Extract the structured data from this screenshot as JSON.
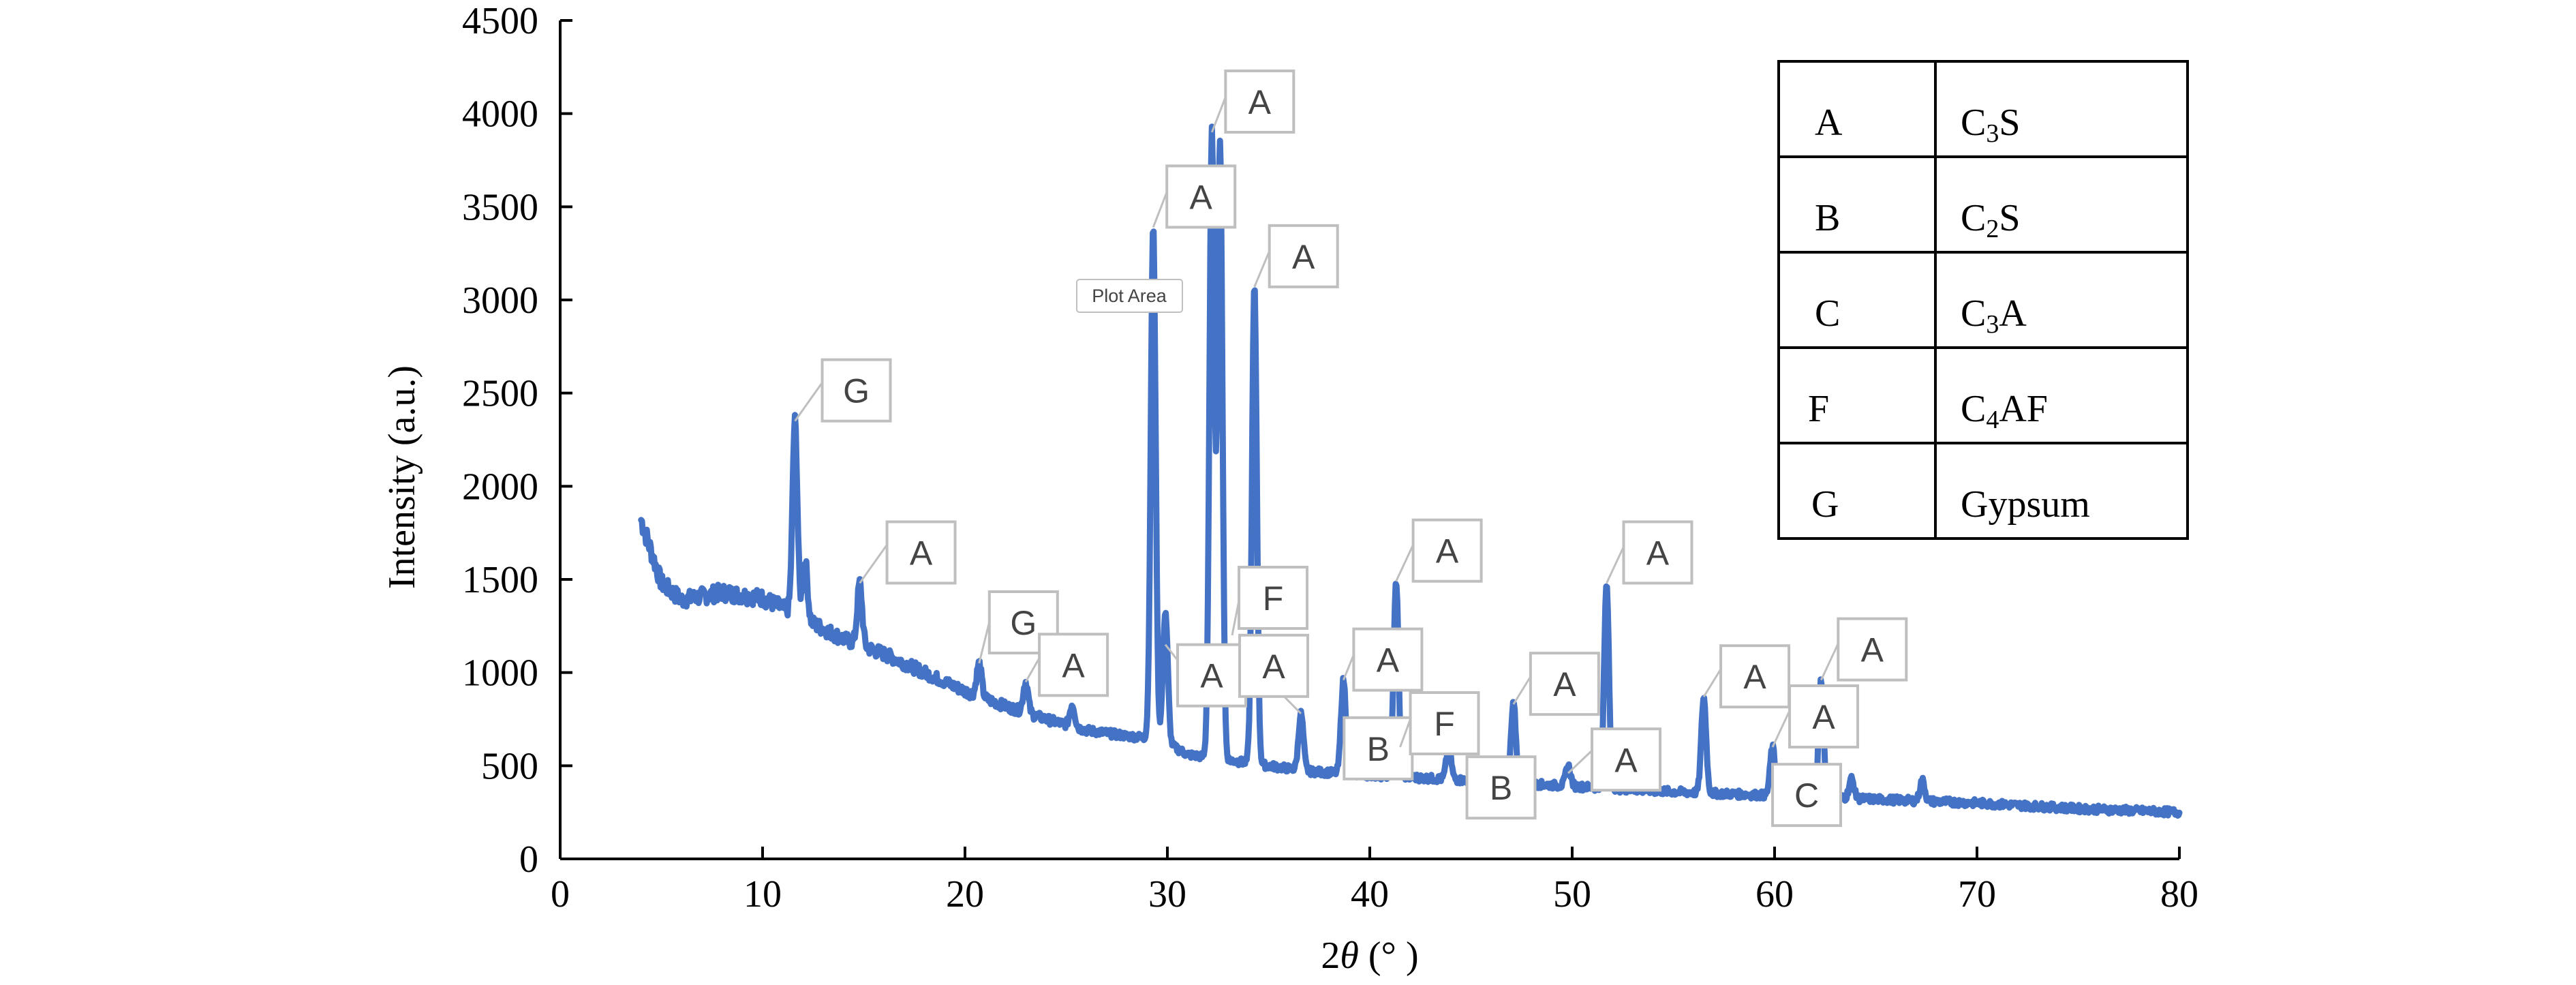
{
  "chart_data": {
    "type": "line",
    "xlabel_prefix": "2",
    "xlabel_theta": "θ",
    "xlabel_suffix": " (° )",
    "ylabel": "Intensity (a.u.)",
    "xlim": [
      0,
      80
    ],
    "ylim": [
      0,
      4500
    ],
    "xticks": [
      0,
      10,
      20,
      30,
      40,
      50,
      60,
      70,
      80
    ],
    "yticks": [
      0,
      500,
      1000,
      1500,
      2000,
      2500,
      3000,
      3500,
      4000,
      4500
    ],
    "grid": false,
    "series_color": "#4472C4",
    "background_curve": [
      [
        4,
        1820
      ],
      [
        5,
        1480
      ],
      [
        6,
        1390
      ],
      [
        8,
        1430
      ],
      [
        10,
        1400
      ],
      [
        12,
        1290
      ],
      [
        14,
        1180
      ],
      [
        16,
        1100
      ],
      [
        18,
        1000
      ],
      [
        20,
        900
      ],
      [
        22,
        820
      ],
      [
        24,
        750
      ],
      [
        26,
        690
      ],
      [
        28,
        660
      ],
      [
        29,
        650
      ],
      [
        30,
        620
      ],
      [
        31,
        560
      ],
      [
        33,
        530
      ],
      [
        35,
        500
      ],
      [
        37,
        470
      ],
      [
        40,
        450
      ],
      [
        45,
        420
      ],
      [
        50,
        390
      ],
      [
        55,
        360
      ],
      [
        60,
        340
      ],
      [
        65,
        320
      ],
      [
        70,
        300
      ],
      [
        75,
        270
      ],
      [
        80,
        250
      ]
    ],
    "peaks": [
      {
        "x": 11.6,
        "y": 2350
      },
      {
        "x": 12.1,
        "y": 1600
      },
      {
        "x": 14.8,
        "y": 1480
      },
      {
        "x": 20.7,
        "y": 1050
      },
      {
        "x": 23.0,
        "y": 950
      },
      {
        "x": 25.3,
        "y": 830
      },
      {
        "x": 29.3,
        "y": 3390
      },
      {
        "x": 29.9,
        "y": 1330
      },
      {
        "x": 32.2,
        "y": 3900
      },
      {
        "x": 32.6,
        "y": 3850
      },
      {
        "x": 34.3,
        "y": 3070
      },
      {
        "x": 36.6,
        "y": 780
      },
      {
        "x": 38.7,
        "y": 960
      },
      {
        "x": 41.3,
        "y": 1490
      },
      {
        "x": 43.9,
        "y": 600
      },
      {
        "x": 47.1,
        "y": 830
      },
      {
        "x": 49.8,
        "y": 500
      },
      {
        "x": 51.7,
        "y": 1480
      },
      {
        "x": 56.5,
        "y": 870
      },
      {
        "x": 59.9,
        "y": 600
      },
      {
        "x": 62.3,
        "y": 960
      },
      {
        "x": 63.8,
        "y": 430
      },
      {
        "x": 67.3,
        "y": 420
      }
    ],
    "peak_labels": [
      {
        "text": "G",
        "x": 11.6,
        "y": 2350
      },
      {
        "text": "A",
        "x": 14.8,
        "y": 1480
      },
      {
        "text": "G",
        "x": 20.7,
        "y": 1050
      },
      {
        "text": "A",
        "x": 23.0,
        "y": 950
      },
      {
        "text": "A",
        "x": 29.3,
        "y": 3390
      },
      {
        "text": "A",
        "x": 29.9,
        "y": 1150
      },
      {
        "text": "A",
        "x": 32.2,
        "y": 3900
      },
      {
        "text": "A",
        "x": 34.3,
        "y": 3070
      },
      {
        "text": "F",
        "x": 33.2,
        "y": 1200
      },
      {
        "text": "A",
        "x": 36.6,
        "y": 780
      },
      {
        "text": "A",
        "x": 38.7,
        "y": 960
      },
      {
        "text": "B",
        "x": 38.9,
        "y": 630
      },
      {
        "text": "F",
        "x": 41.5,
        "y": 600
      },
      {
        "text": "A",
        "x": 41.3,
        "y": 1490
      },
      {
        "text": "B",
        "x": 44.8,
        "y": 420
      },
      {
        "text": "A",
        "x": 47.1,
        "y": 830
      },
      {
        "text": "A",
        "x": 51.7,
        "y": 1480
      },
      {
        "text": "A",
        "x": 49.8,
        "y": 460
      },
      {
        "text": "A",
        "x": 56.5,
        "y": 870
      },
      {
        "text": "C",
        "x": 59.9,
        "y": 380
      },
      {
        "text": "A",
        "x": 59.9,
        "y": 600
      },
      {
        "text": "A",
        "x": 62.3,
        "y": 960
      }
    ],
    "tooltip": "Plot Area"
  },
  "legend_table": [
    {
      "code": "A",
      "base": "C",
      "sub": "3",
      "rest": "S"
    },
    {
      "code": "B",
      "base": "C",
      "sub": "2",
      "rest": "S"
    },
    {
      "code": "C",
      "base": "C",
      "sub": "3",
      "rest": "A"
    },
    {
      "code": "F",
      "base": "C",
      "sub": "4",
      "rest": "AF"
    },
    {
      "code": "G",
      "base": "Gypsum",
      "sub": "",
      "rest": ""
    }
  ]
}
